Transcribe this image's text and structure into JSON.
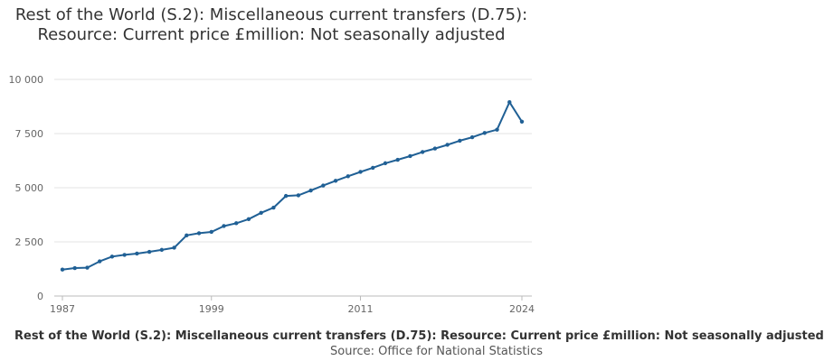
{
  "chart_data": {
    "type": "line",
    "title": "Rest of the World (S.2): Miscellaneous current transfers (D.75): Resource: Current price £million: Not seasonally adjusted",
    "footer_title": "Rest of the World (S.2): Miscellaneous current transfers (D.75): Resource: Current price £million: Not seasonally adjusted",
    "source_label": "Source: Office for National Statistics",
    "xlabel": "",
    "ylabel": "",
    "ylim": [
      0,
      10000
    ],
    "xlim": [
      1987,
      2024
    ],
    "yticks": [
      0,
      2500,
      5000,
      7500,
      10000
    ],
    "ytick_labels": [
      "0",
      "2 500",
      "5 000",
      "7 500",
      "10 000"
    ],
    "xticks": [
      1987,
      1999,
      2011,
      2024
    ],
    "xtick_labels": [
      "1987",
      "1999",
      "2011",
      "2024"
    ],
    "grid": "horizontal",
    "line_color": "#206095",
    "x": [
      1987,
      1988,
      1989,
      1990,
      1991,
      1992,
      1993,
      1994,
      1995,
      1996,
      1997,
      1998,
      1999,
      2000,
      2001,
      2002,
      2003,
      2004,
      2005,
      2006,
      2007,
      2008,
      2009,
      2010,
      2011,
      2012,
      2013,
      2014,
      2015,
      2016,
      2017,
      2018,
      2019,
      2020,
      2021,
      2022,
      2023,
      2024
    ],
    "values": [
      1220,
      1290,
      1310,
      1600,
      1820,
      1900,
      1960,
      2040,
      2130,
      2230,
      2800,
      2900,
      2960,
      3230,
      3360,
      3550,
      3840,
      4080,
      4620,
      4650,
      4870,
      5100,
      5320,
      5530,
      5730,
      5920,
      6130,
      6290,
      6460,
      6650,
      6810,
      6980,
      7170,
      7330,
      7530,
      7680,
      8950,
      8050
    ]
  }
}
